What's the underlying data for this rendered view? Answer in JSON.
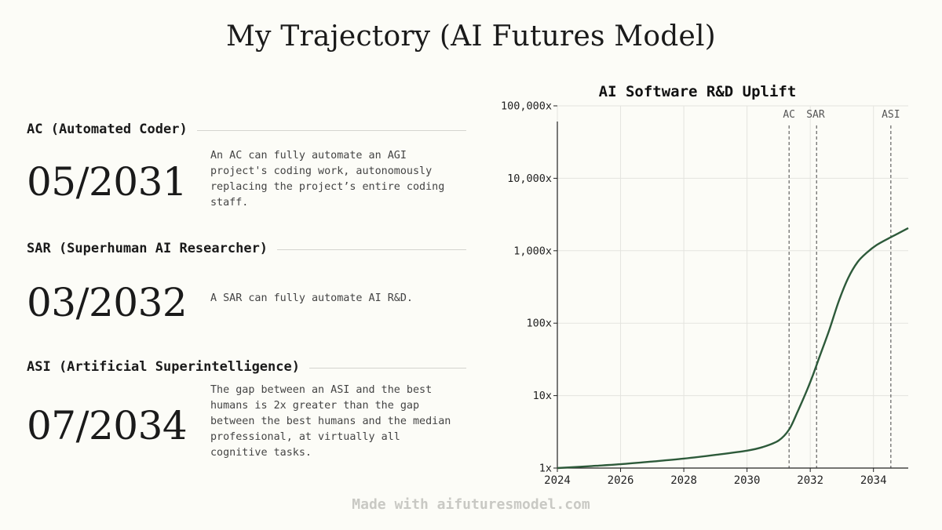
{
  "title": "My Trajectory (AI Futures Model)",
  "milestones": [
    {
      "label": "AC (Automated Coder)",
      "date": "05/2031",
      "desc_lines": [
        "An AC can fully automate an AGI",
        "project's coding work, autonomously",
        "replacing the project’s entire coding",
        "staff."
      ]
    },
    {
      "label": "SAR (Superhuman AI Researcher)",
      "date": "03/2032",
      "desc_lines": [
        "A SAR can fully automate AI R&D."
      ]
    },
    {
      "label": "ASI (Artificial Superintelligence)",
      "date": "07/2034",
      "desc_lines": [
        "The gap between an ASI and the best",
        "humans is 2x greater than the gap",
        "between the best humans and the median",
        "professional, at virtually all",
        "cognitive tasks."
      ]
    }
  ],
  "chart_data": {
    "type": "line",
    "title": "AI Software R&D Uplift",
    "xlabel": "",
    "ylabel": "",
    "xlim": [
      2024,
      2035.1
    ],
    "ylim": [
      1,
      100000
    ],
    "y_scale": "log",
    "x_ticks": [
      2024,
      2026,
      2028,
      2030,
      2032,
      2034
    ],
    "x_tick_labels": [
      "2024",
      "2026",
      "2028",
      "2030",
      "2032",
      "2034"
    ],
    "y_ticks": [
      1,
      10,
      100,
      1000,
      10000,
      100000
    ],
    "y_tick_labels": [
      "1x",
      "10x",
      "100x",
      "1,000x",
      "10,000x",
      "100,000x"
    ],
    "grid": true,
    "line_color": "#2d5a3a",
    "milestone_lines": [
      {
        "label": "AC",
        "x": 2031.33
      },
      {
        "label": "SAR",
        "x": 2032.2
      },
      {
        "label": "ASI",
        "x": 2034.55
      }
    ],
    "series": [
      {
        "x": [
          2024,
          2025,
          2026,
          2027,
          2028,
          2029,
          2030,
          2030.5,
          2031,
          2031.33,
          2031.6,
          2031.9,
          2032.1,
          2032.3,
          2032.6,
          2032.9,
          2033.2,
          2033.5,
          2033.8,
          2034.1,
          2034.5,
          2034.8,
          2035.1
        ],
        "y": [
          1,
          1.06,
          1.13,
          1.23,
          1.35,
          1.52,
          1.74,
          1.95,
          2.4,
          3.4,
          6,
          12,
          20,
          35,
          80,
          200,
          420,
          700,
          950,
          1200,
          1500,
          1750,
          2050
        ]
      }
    ]
  },
  "footer": "Made with aifuturesmodel.com"
}
